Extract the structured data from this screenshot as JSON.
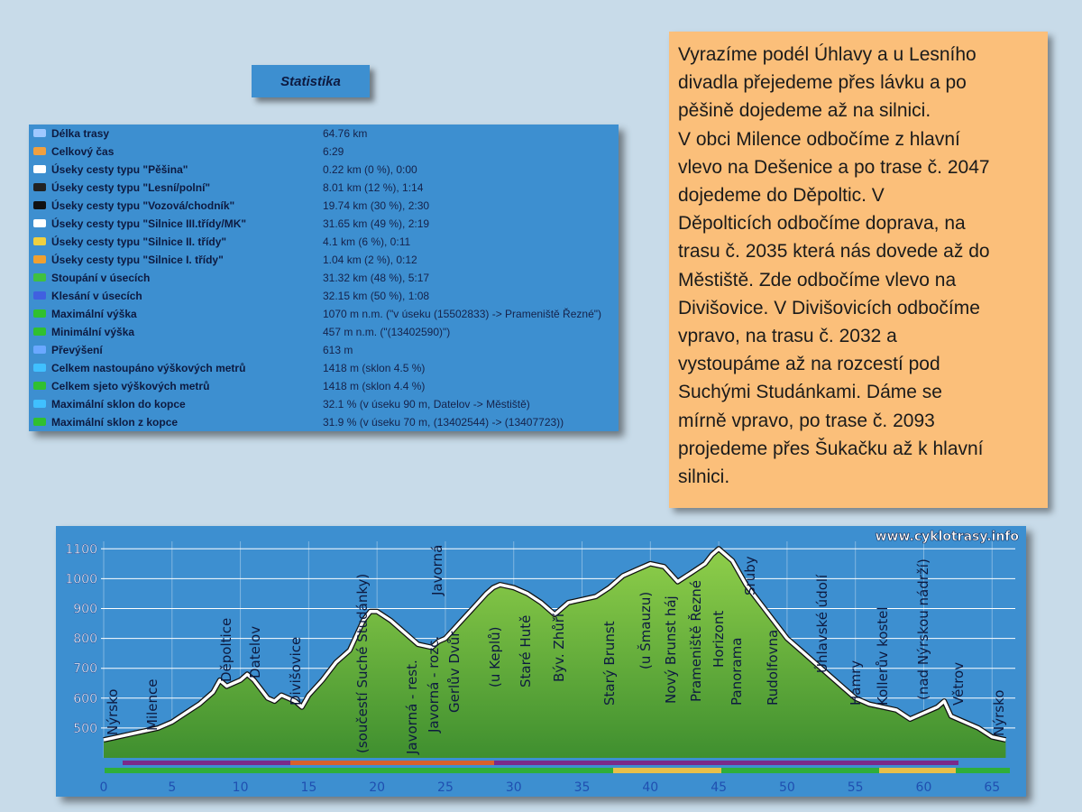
{
  "statistics_title": "Statistika",
  "statistics": {
    "rows": [
      [
        "Délka trasy",
        "64.76 km"
      ],
      [
        "Celkový čas",
        "6:29"
      ],
      [
        "Úseky cesty typu \"Pěšina\"",
        "0.22 km (0 %), 0:00"
      ],
      [
        "Úseky cesty typu \"Lesní/polní\"",
        "8.01 km (12 %), 1:14"
      ],
      [
        "Úseky cesty typu \"Vozová/chodník\"",
        "19.74 km (30 %), 2:30"
      ],
      [
        "Úseky cesty typu \"Silnice III.třídy/MK\"",
        "31.65 km (49 %), 2:19"
      ],
      [
        "Úseky cesty typu \"Silnice II. třídy\"",
        "4.1 km (6 %), 0:11"
      ],
      [
        "Úseky cesty typu \"Silnice I. třídy\"",
        "1.04 km (2 %), 0:12"
      ],
      [
        "Stoupání v úsecích",
        "31.32 km (48 %), 5:17"
      ],
      [
        "Klesání v úsecích",
        "32.15 km (50 %), 1:08"
      ],
      [
        "Maximální výška",
        "1070 m n.m. (\"v úseku (15502833) -> Prameniště Řezné\")"
      ],
      [
        "Minimální výška",
        "457 m n.m. (\"(13402590)\")"
      ],
      [
        "Převýšení",
        "613 m"
      ],
      [
        "Celkem nastoupáno výškových metrů",
        "1418 m (sklon 4.5 %)"
      ],
      [
        "Celkem sjeto výškových metrů",
        "1418 m (sklon 4.4 %)"
      ],
      [
        "Maximální sklon do kopce",
        "32.1 % (v úseku 90 m, Datelov -> Městiště)"
      ],
      [
        "Maximální sklon z kopce",
        "31.9 % (v úseku 70 m, (13402544) -> (13407723))"
      ]
    ]
  },
  "description": {
    "lines": [
      "Vyrazíme podél Úhlavy a u Lesního",
      "divadla přejedeme přes lávku a po",
      "pěšině dojedeme až na silnici.",
      "V obci Milence odbočíme z hlavní",
      "vlevo na Dešenice a po trase č. 2047",
      "dojedeme do  Děpoltic. V",
      "Děpolticích odbočíme doprava, na",
      "trasu č. 2035 která nás dovede až do",
      "Městiště. Zde odbočíme vlevo na",
      "Divišovice. V Divišovicích odbočíme",
      "vpravo, na trasu č. 2032 a",
      "vystoupáme až na rozcestí pod",
      "Suchými Studánkami. Dáme se",
      "mírně vpravo, po trase č. 2093",
      "projedeme přes Šukačku až k hlavní",
      "silnici."
    ]
  },
  "chart_data": {
    "type": "area",
    "watermark": "www.cyklotrasy.info",
    "x": [
      0,
      1,
      2,
      3,
      4,
      5,
      6,
      7,
      8,
      8.5,
      9,
      10,
      10.5,
      11,
      12,
      12.5,
      13,
      14,
      14.5,
      15,
      16,
      17,
      18,
      19,
      19.5,
      20,
      21,
      22,
      23,
      24,
      24.5,
      25,
      26,
      27,
      28,
      28.5,
      29,
      30,
      31,
      32,
      33,
      34,
      35,
      36,
      37,
      38,
      39,
      40,
      41,
      42,
      43,
      44,
      44.5,
      45,
      46,
      47,
      48,
      49,
      50,
      51,
      52,
      53,
      54,
      55,
      56,
      57,
      58,
      59,
      60,
      61,
      61.5,
      62,
      63,
      64,
      65,
      66
    ],
    "series": [
      {
        "color": "#5fae3a",
        "values": [
          460,
          470,
          480,
          490,
          500,
          520,
          550,
          580,
          620,
          660,
          640,
          660,
          680,
          660,
          600,
          590,
          610,
          590,
          570,
          610,
          660,
          720,
          760,
          860,
          890,
          890,
          860,
          820,
          780,
          770,
          790,
          800,
          850,
          900,
          950,
          970,
          980,
          970,
          950,
          920,
          880,
          920,
          930,
          940,
          970,
          1010,
          1030,
          1050,
          1040,
          990,
          1020,
          1050,
          1080,
          1100,
          1060,
          980,
          920,
          860,
          800,
          760,
          720,
          680,
          640,
          600,
          580,
          570,
          560,
          530,
          550,
          570,
          590,
          540,
          520,
          500,
          470,
          460
        ]
      }
    ],
    "xlim": [
      0,
      66.5
    ],
    "ylim": [
      400,
      1125
    ],
    "xticks": [
      0,
      5,
      10,
      15,
      20,
      25,
      30,
      35,
      40,
      45,
      50,
      55,
      60,
      65
    ],
    "yticks": [
      500,
      600,
      700,
      800,
      900,
      1000,
      1100
    ],
    "grid": true,
    "annotations": [
      "Nýrsko",
      "Milence",
      "Děpoltice",
      "Datelov",
      "Divišovice",
      "(součestí Suché Studánky)",
      "Javorná - rest.",
      "Javorná - rozc.",
      "Javorná",
      "Gerlův Dvůr",
      "(u Keplů)",
      "Staré Hutě",
      "Býv. Zhůří",
      "Starý Brunst",
      "(u Šmauzu)",
      "Nový Brunst háj",
      "Prameniště Řezné",
      "Horizont",
      "Panorama",
      "Sruby",
      "Rudolfovna",
      "Úhlavské údolí",
      "Hamry",
      "Kollerův kostel",
      "(nad Nýrskou nádrží)",
      "Větrov",
      "Nýrsko"
    ]
  }
}
